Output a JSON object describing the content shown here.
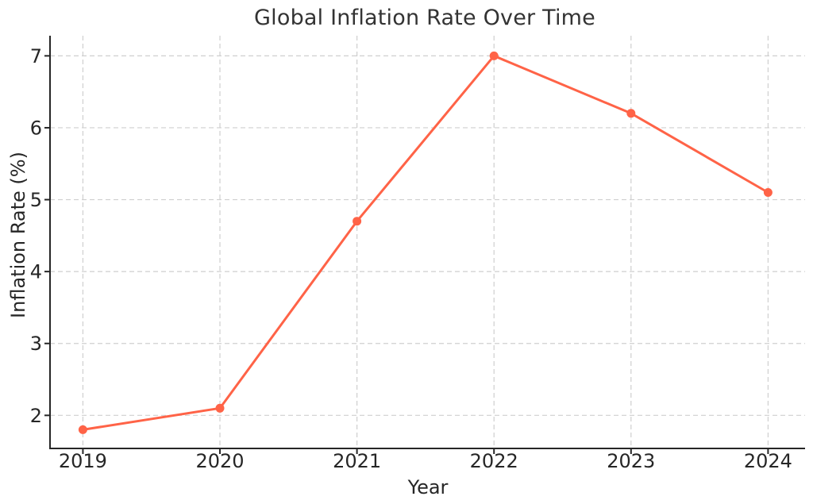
{
  "chart_data": {
    "type": "line",
    "title": "Global Inflation Rate Over Time",
    "xlabel": "Year",
    "ylabel": "Inflation Rate (%)",
    "categories": [
      2019,
      2020,
      2021,
      2022,
      2023,
      2024
    ],
    "values": [
      1.8,
      2.1,
      4.7,
      7.0,
      6.2,
      5.1
    ],
    "series_name": "Global Inflation Rate",
    "yticks": [
      2,
      3,
      4,
      5,
      6,
      7
    ],
    "xlim": [
      2018.76,
      2024.27
    ],
    "ylim": [
      1.54,
      7.28
    ],
    "line_color": "#FF6347",
    "marker": "circle",
    "marker_radius": 5.5,
    "line_width": 3,
    "grid": {
      "show": true,
      "style": "dashed",
      "color": "#cfcfcf"
    },
    "spine_color": "#262626",
    "text_color": "#262626",
    "title_color": "#333333",
    "background": "#ffffff",
    "legend": "none"
  }
}
